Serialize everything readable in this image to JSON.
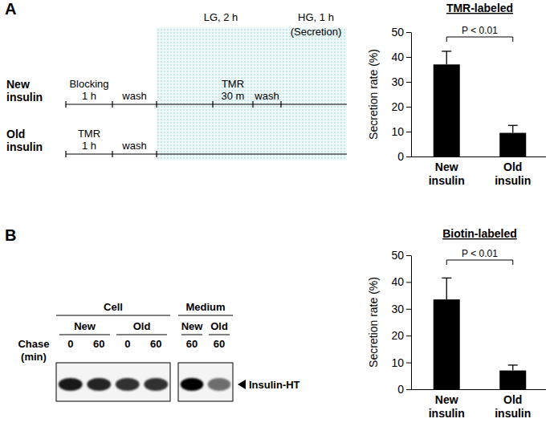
{
  "chart_data": [
    {
      "type": "bar",
      "title": "TMR-labeled",
      "y_label": "Secretion rate (%)",
      "categories": [
        "New insulin",
        "Old insulin"
      ],
      "values": [
        37,
        9.5
      ],
      "errors": [
        5.3,
        3
      ],
      "color": "#000000",
      "ylim": [
        0,
        50
      ],
      "yticks": [
        0,
        10,
        20,
        30,
        40,
        50
      ],
      "annotations": [
        {
          "text": "P < 0.01"
        }
      ]
    },
    {
      "type": "bar",
      "title": "Biotin-labeled",
      "y_label": "Secretion rate (%)",
      "categories": [
        "New insulin",
        "Old insulin"
      ],
      "values": [
        33.5,
        7
      ],
      "errors": [
        8,
        2
      ],
      "color": "#000000",
      "ylim": [
        0,
        50
      ],
      "yticks": [
        0,
        10,
        20,
        30,
        40,
        50
      ],
      "annotations": [
        {
          "text": "P < 0.01"
        }
      ]
    }
  ],
  "panel_labels": [
    "A",
    "B"
  ],
  "protocol": {
    "phases": [
      {
        "lines": [
          "LG, 2 h"
        ]
      },
      {
        "lines": [
          "HG, 1 h",
          "(Secretion)"
        ]
      }
    ],
    "rows": [
      {
        "lines": [
          "New",
          "insulin"
        ],
        "steps": [
          {
            "lines": [
              "Blocking",
              "1 h"
            ]
          },
          {
            "lines": [
              "wash"
            ]
          },
          {
            "lines": [
              "TMR",
              "30 m"
            ]
          },
          {
            "lines": [
              "wash"
            ]
          }
        ]
      },
      {
        "lines": [
          "Old",
          "insulin"
        ],
        "steps": [
          {
            "lines": [
              "TMR",
              "1 h"
            ]
          },
          {
            "lines": [
              "wash"
            ]
          }
        ]
      }
    ]
  },
  "blot": {
    "row_label": [
      "Chase",
      "(min)"
    ],
    "band_label": "Insulin-HT",
    "panels": [
      {
        "label": "Cell",
        "groups": [
          {
            "label": "New",
            "lanes": [
              {
                "chase": 0,
                "intensity": 0.9
              },
              {
                "chase": 60,
                "intensity": 0.85
              }
            ]
          },
          {
            "label": "Old",
            "lanes": [
              {
                "chase": 0,
                "intensity": 0.8
              },
              {
                "chase": 60,
                "intensity": 0.8
              }
            ]
          }
        ]
      },
      {
        "label": "Medium",
        "groups": [
          {
            "label": "New",
            "lanes": [
              {
                "chase": 60,
                "intensity": 1
              }
            ]
          },
          {
            "label": "Old",
            "lanes": [
              {
                "chase": 60,
                "intensity": 0.55
              }
            ]
          }
        ]
      }
    ]
  }
}
